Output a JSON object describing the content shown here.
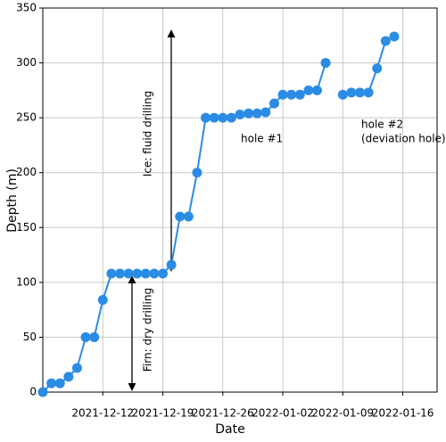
{
  "chart_data": {
    "type": "line",
    "xlabel": "Date",
    "ylabel": "Depth (m)",
    "x": [
      "2021-12-05",
      "2021-12-06",
      "2021-12-07",
      "2021-12-08",
      "2021-12-09",
      "2021-12-10",
      "2021-12-11",
      "2021-12-12",
      "2021-12-13",
      "2021-12-14",
      "2021-12-15",
      "2021-12-16",
      "2021-12-17",
      "2021-12-18",
      "2021-12-19",
      "2021-12-20",
      "2021-12-21",
      "2021-12-22",
      "2021-12-23",
      "2021-12-24",
      "2021-12-25",
      "2021-12-26",
      "2021-12-27",
      "2021-12-28",
      "2021-12-29",
      "2021-12-30",
      "2021-12-31",
      "2022-01-01",
      "2022-01-02",
      "2022-01-03",
      "2022-01-04",
      "2022-01-05",
      "2022-01-06",
      "2022-01-07",
      "2022-01-08",
      "2022-01-09",
      "2022-01-10",
      "2022-01-11",
      "2022-01-12",
      "2022-01-13",
      "2022-01-14",
      "2022-01-15"
    ],
    "values": [
      0,
      8,
      8,
      14,
      22,
      50,
      50,
      84,
      108,
      108,
      108,
      108,
      108,
      108,
      108,
      116,
      160,
      160,
      200,
      250,
      250,
      250,
      250,
      253,
      254,
      254,
      255,
      263,
      271,
      271,
      271,
      275,
      275,
      300,
      null,
      271,
      273,
      273,
      273,
      295,
      320,
      324
    ],
    "color": "#2b8ce6",
    "xlim": [
      "2021-12-05",
      "2022-01-20"
    ],
    "xticks": [
      "2021-12-12",
      "2021-12-19",
      "2021-12-26",
      "2022-01-02",
      "2022-01-09",
      "2022-01-16"
    ],
    "ylim": [
      0,
      350
    ],
    "yticks": [
      0,
      50,
      100,
      150,
      200,
      250,
      300,
      350
    ],
    "grid": true,
    "annotations": [
      "Ice: fluid drilling",
      "Firn: dry drilling",
      "hole #1",
      "hole #2",
      "(deviation hole)"
    ]
  }
}
